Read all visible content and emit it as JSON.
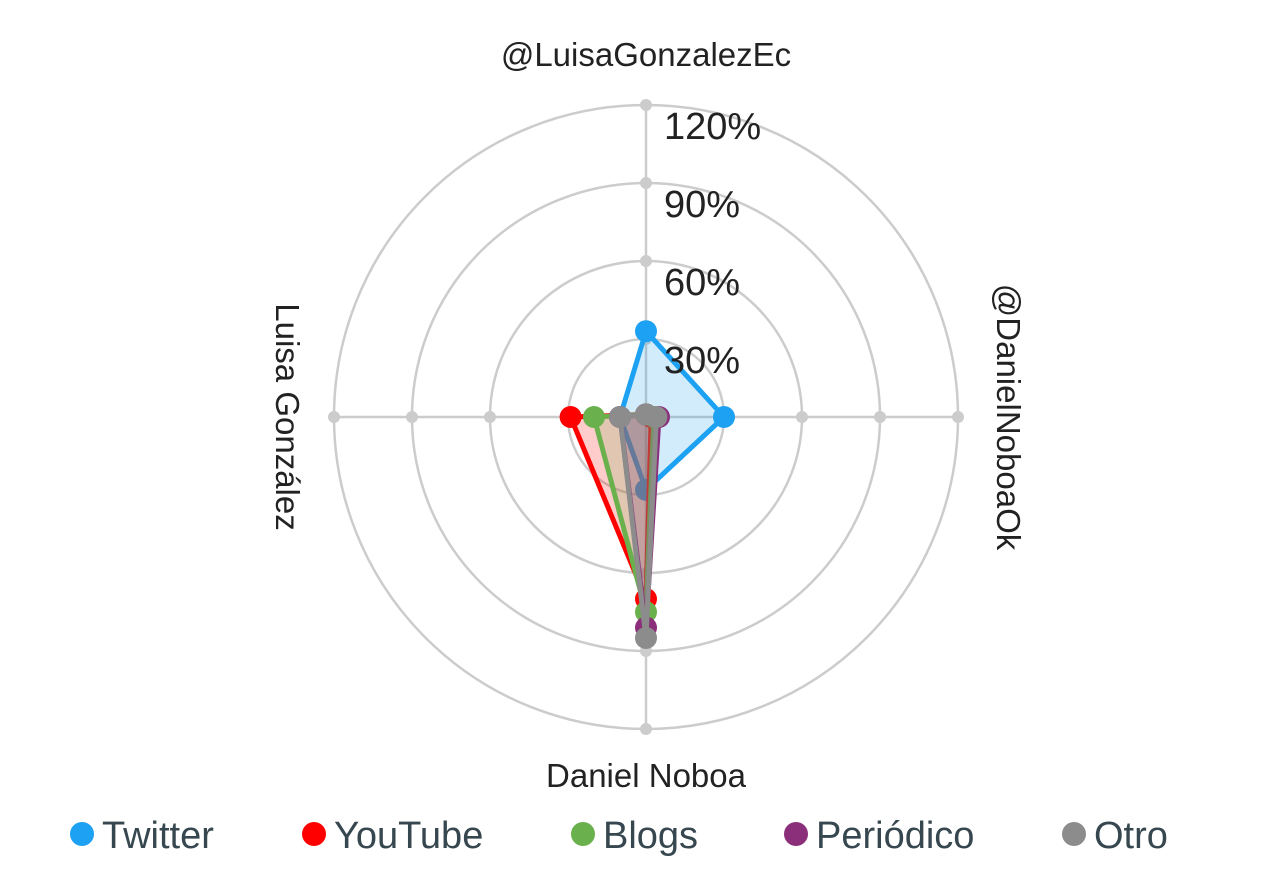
{
  "chart_data": {
    "type": "radar",
    "axes": [
      "@LuisaGonzalezEc",
      "@DanielNoboaOk",
      "Daniel Noboa",
      "Luisa González"
    ],
    "r_ticks": [
      "30%",
      "60%",
      "90%",
      "120%"
    ],
    "r_range": [
      0,
      120
    ],
    "grid": true,
    "legend_position": "bottom",
    "series": [
      {
        "name": "Twitter",
        "color": "#1da1f2",
        "values": [
          33,
          30,
          28,
          10
        ]
      },
      {
        "name": "YouTube",
        "color": "#ff0000",
        "values": [
          1,
          2,
          70,
          29
        ]
      },
      {
        "name": "Blogs",
        "color": "#6ab04c",
        "values": [
          1,
          3,
          75,
          20
        ]
      },
      {
        "name": "Periódico",
        "color": "#8b2f7a",
        "values": [
          1,
          5,
          81,
          10
        ]
      },
      {
        "name": "Otro",
        "color": "#8c8c8c",
        "values": [
          1,
          4,
          85,
          10
        ]
      }
    ]
  }
}
